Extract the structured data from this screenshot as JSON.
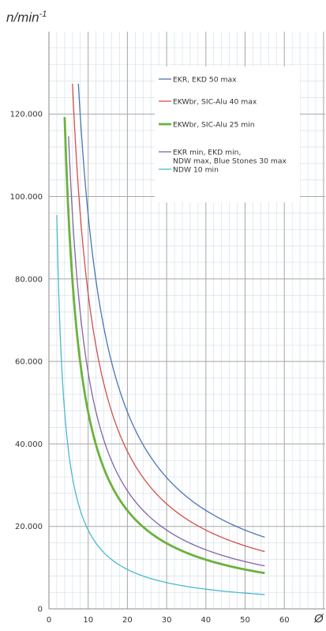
{
  "chart_data": {
    "type": "line",
    "ylabel": "n/min",
    "ylabel_sup": "-1",
    "xlabel": "Ø",
    "xlim": [
      0,
      70
    ],
    "ylim": [
      0,
      150000
    ],
    "xticks": [
      0,
      10,
      20,
      30,
      40,
      50,
      60
    ],
    "yticks": [
      0,
      20000,
      40000,
      60000,
      80000,
      100000,
      120000
    ],
    "ytick_labels": [
      "0",
      "20.000",
      "40.000",
      "60.000",
      "80.000",
      "100.000",
      "120.000"
    ],
    "grid": true,
    "legend_position": "top-right",
    "series": [
      {
        "name": "EKR, EKD 50 max",
        "color": "#4a74b8",
        "width": 1.3,
        "constant": 955000,
        "x_start": 7.5,
        "x_end": 55
      },
      {
        "name": "EKWbr, SIC-Alu 40 max",
        "color": "#d0504a",
        "width": 1.3,
        "constant": 764000,
        "x_start": 6.0,
        "x_end": 55
      },
      {
        "name": "EKWbr, SIC-Alu 25 min",
        "color": "#6bb23c",
        "width": 2.8,
        "constant": 477000,
        "x_start": 4.0,
        "x_end": 55
      },
      {
        "name": "EKR min, EKD min,|NDW max, Blue Stones 30 max",
        "color": "#8063a8",
        "width": 1.3,
        "constant": 573000,
        "x_start": 5.0,
        "x_end": 55
      },
      {
        "name": "NDW 10 min",
        "color": "#4bb8d0",
        "width": 1.3,
        "constant": 191000,
        "x_start": 2.0,
        "x_end": 55
      }
    ]
  }
}
